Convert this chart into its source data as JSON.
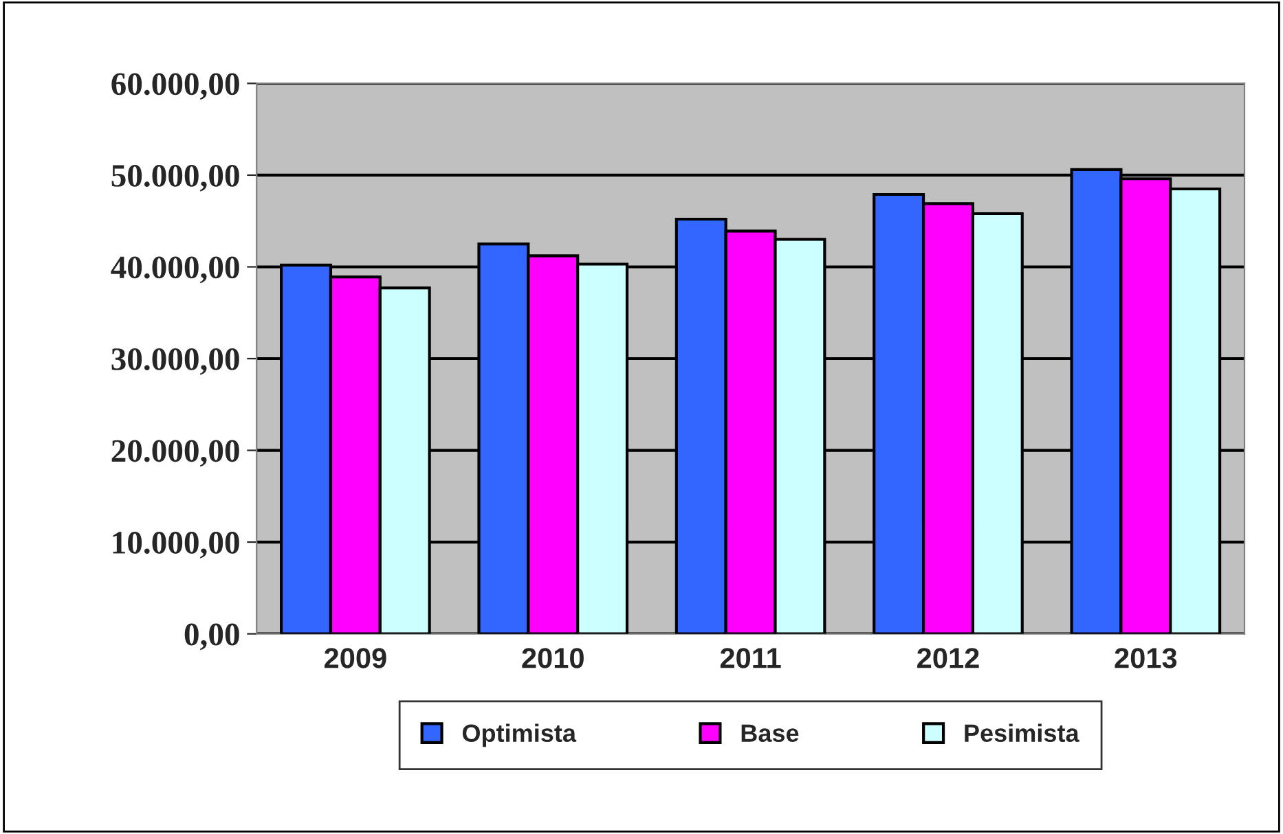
{
  "chart_data": {
    "type": "bar",
    "categories": [
      "2009",
      "2010",
      "2011",
      "2012",
      "2013"
    ],
    "series": [
      {
        "name": "Optimista",
        "color": "#3366ff",
        "values": [
          40200,
          42500,
          45200,
          47900,
          50600
        ]
      },
      {
        "name": "Base",
        "color": "#ff00ff",
        "values": [
          38900,
          41200,
          43900,
          46900,
          49600
        ]
      },
      {
        "name": "Pesimista",
        "color": "#ccffff",
        "values": [
          37700,
          40300,
          43000,
          45800,
          48500
        ]
      }
    ],
    "ylim": [
      0,
      60000
    ],
    "yticks": [
      {
        "value": 0,
        "label": "0,00"
      },
      {
        "value": 10000,
        "label": "10.000,00"
      },
      {
        "value": 20000,
        "label": "20.000,00"
      },
      {
        "value": 30000,
        "label": "30.000,00"
      },
      {
        "value": 40000,
        "label": "40.000,00"
      },
      {
        "value": 50000,
        "label": "50.000,00"
      },
      {
        "value": 60000,
        "label": "60.000,00"
      }
    ],
    "grid": "y",
    "legend": "bottom"
  }
}
